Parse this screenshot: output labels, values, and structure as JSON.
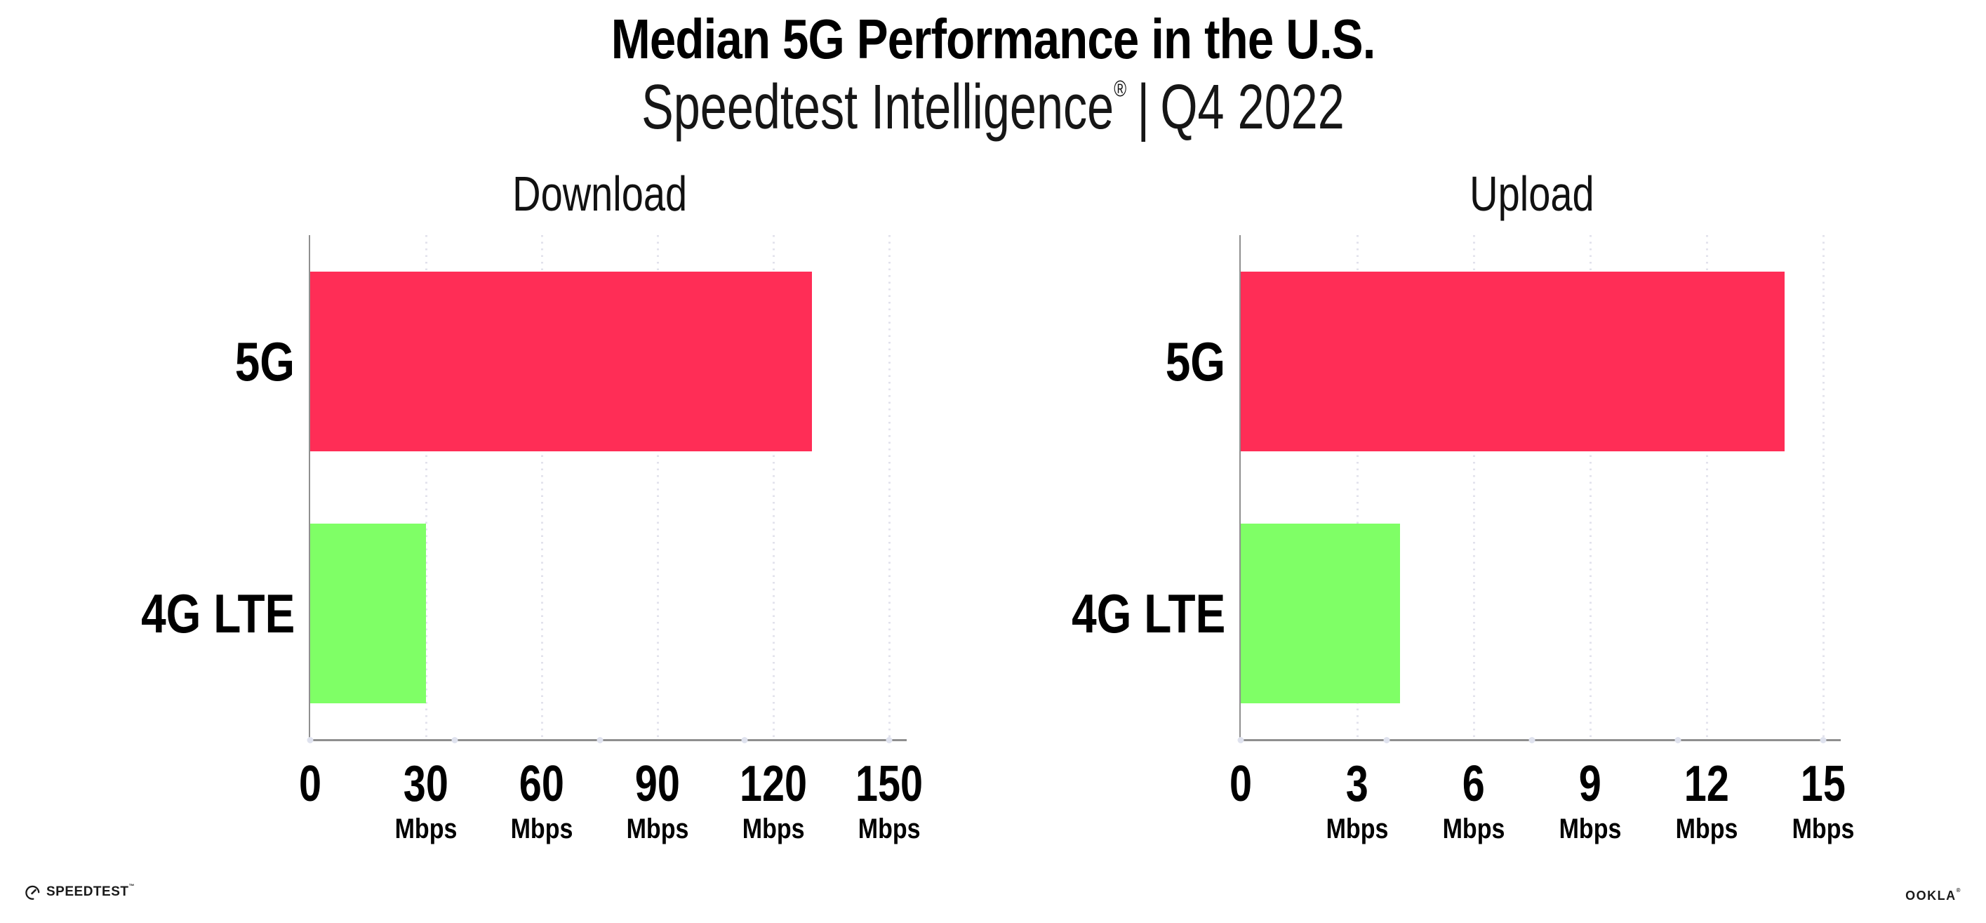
{
  "header": {
    "title": "Median 5G Performance in the U.S.",
    "subtitle_brand": "Speedtest Intelligence",
    "subtitle_reg_mark": "®",
    "subtitle_sep": "|",
    "subtitle_period": "Q4 2022"
  },
  "colors": {
    "bar_5g": "#FF2D56",
    "bar_4g_lte": "#7FFF66",
    "axis": "#8F8F8F",
    "gridline": "#E2E2EC",
    "text": "#000000"
  },
  "chart_data": [
    {
      "type": "bar",
      "orientation": "horizontal",
      "title": "Download",
      "categories": [
        "5G",
        "4G LTE"
      ],
      "values": [
        130,
        30
      ],
      "unit": "Mbps",
      "xlim": [
        0,
        150
      ],
      "xticks": [
        0,
        30,
        60,
        90,
        120,
        150
      ],
      "bar_colors": [
        "#FF2D56",
        "#7FFF66"
      ],
      "grid": "dotted-vertical",
      "legend": "none"
    },
    {
      "type": "bar",
      "orientation": "horizontal",
      "title": "Upload",
      "categories": [
        "5G",
        "4G LTE"
      ],
      "values": [
        14,
        4.1
      ],
      "unit": "Mbps",
      "xlim": [
        0,
        15
      ],
      "xticks": [
        0,
        3,
        6,
        9,
        12,
        15
      ],
      "bar_colors": [
        "#FF2D56",
        "#7FFF66"
      ],
      "grid": "dotted-vertical",
      "legend": "none"
    }
  ],
  "footer": {
    "speedtest_label": "SPEEDTEST",
    "speedtest_mark": "™",
    "ookla_label": "OOKLA",
    "ookla_mark": "®"
  }
}
